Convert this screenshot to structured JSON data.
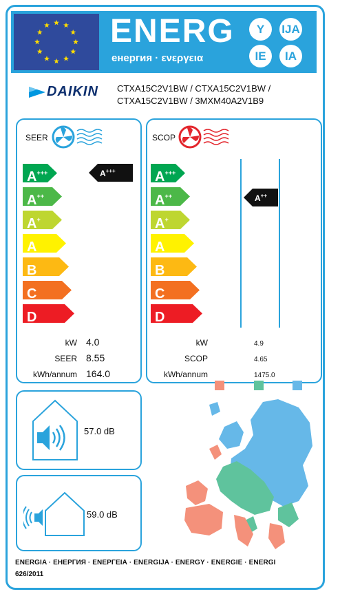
{
  "header": {
    "energ_word": "ENERG",
    "energ_sub": "енергия · ενεργεια",
    "lang_badges": [
      "Y",
      "IJA",
      "IE",
      "IA"
    ]
  },
  "brand": {
    "logo_text": "DAIKIN",
    "model_line1": "CTXA15C2V1BW / CTXA15C2V1BW /",
    "model_line2": "CTXA15C2V1BW / 3MXM40A2V1B9"
  },
  "cooling": {
    "title": "SEER",
    "classes": [
      {
        "letter": "A",
        "sup": "+++",
        "color": "#00a651"
      },
      {
        "letter": "A",
        "sup": "++",
        "color": "#4cb848"
      },
      {
        "letter": "A",
        "sup": "+",
        "color": "#bed630"
      },
      {
        "letter": "A",
        "sup": "",
        "color": "#fff200"
      },
      {
        "letter": "B",
        "sup": "",
        "color": "#fdb913"
      },
      {
        "letter": "C",
        "sup": "",
        "color": "#f37021"
      },
      {
        "letter": "D",
        "sup": "",
        "color": "#ed1c24"
      }
    ],
    "rating_letter": "A",
    "rating_sup": "+++",
    "rows": [
      {
        "label": "kW",
        "value": "4.0"
      },
      {
        "label": "SEER",
        "value": "8.55"
      },
      {
        "label": "kWh/annum",
        "value": "164.0"
      }
    ]
  },
  "heating": {
    "title": "SCOP",
    "rating_letter": "A",
    "rating_sup": "++",
    "rows": [
      {
        "label": "kW",
        "value": "4.9"
      },
      {
        "label": "SCOP",
        "value": "4.65"
      },
      {
        "label": "kWh/annum",
        "value": "1475.0"
      }
    ],
    "zone_colors": [
      "#f4917b",
      "#5fc39d",
      "#66b8e8"
    ]
  },
  "noise": {
    "indoor_db": "57.0 dB",
    "outdoor_db": "59.0 dB"
  },
  "footer": {
    "languages": "ENERGIA · ЕНЕРГИЯ · ΕΝΕΡΓΕΙΑ · ENERGIJA · ENERGY · ENERGIE · ENERGI",
    "regulation": "626/2011"
  },
  "colors": {
    "border": "#2aa3dc",
    "eu_blue": "#2f4a9c",
    "daikin_blue": "#0097e0",
    "fan_red": "#e3262d"
  }
}
